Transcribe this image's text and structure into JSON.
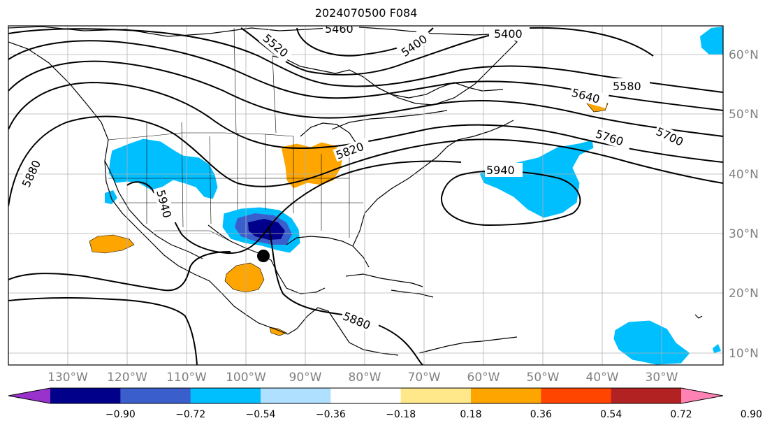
{
  "title": "2024070500 F084",
  "map": {
    "lon_labels": [
      "130°W",
      "120°W",
      "110°W",
      "100°W",
      "90°W",
      "80°W",
      "70°W",
      "60°W",
      "50°W",
      "40°W",
      "30°W"
    ],
    "lat_labels": [
      "60°N",
      "50°N",
      "40°N",
      "30°N",
      "20°N",
      "10°N"
    ],
    "contour_labels": [
      "5400",
      "5400",
      "5460",
      "5520",
      "5580",
      "5640",
      "5700",
      "5760",
      "5820",
      "5880",
      "5880",
      "5940",
      "5940"
    ],
    "anomaly_colors": {
      "strong_negative": "#00008b",
      "moderate_negative": "#3a5fcd",
      "negative": "#00bfff",
      "positive": "#ffa500"
    },
    "marker": "storm-position-dot"
  },
  "colorbar": {
    "ticks": [
      "−0.90",
      "−0.72",
      "−0.54",
      "−0.36",
      "−0.18",
      "0.18",
      "0.36",
      "0.54",
      "0.72",
      "0.90"
    ],
    "colors": [
      "#9932cc",
      "#00008b",
      "#3a5fcd",
      "#00bfff",
      "#b0e0ff",
      "#ffffff",
      "#ffe88a",
      "#ffa500",
      "#ff4500",
      "#b22222",
      "#ff82b4"
    ]
  }
}
